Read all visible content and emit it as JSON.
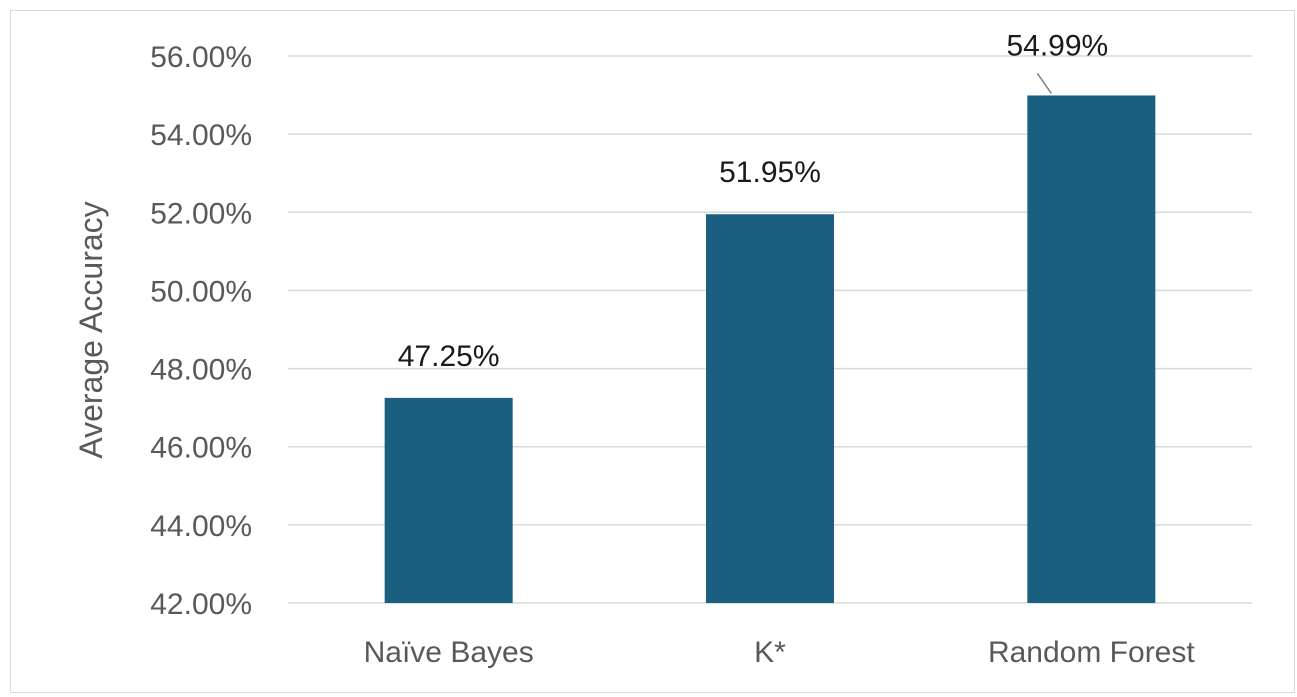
{
  "chart_data": {
    "type": "bar",
    "categories": [
      "Naïve Bayes",
      "K*",
      "Random Forest"
    ],
    "values": [
      47.25,
      51.95,
      54.99
    ],
    "data_labels": [
      "47.25%",
      "51.95%",
      "54.99%"
    ],
    "title": "",
    "xlabel": "",
    "ylabel": "Average Accuracy",
    "ylim": [
      42,
      56
    ],
    "y_ticks": [
      42,
      44,
      46,
      48,
      50,
      52,
      54,
      56
    ],
    "y_tick_labels": [
      "42.00%",
      "44.00%",
      "46.00%",
      "48.00%",
      "50.00%",
      "52.00%",
      "54.00%",
      "56.00%"
    ],
    "grid": true,
    "legend": "none",
    "bar_color": "#1a5e80",
    "grid_color": "#d9d9d9"
  }
}
